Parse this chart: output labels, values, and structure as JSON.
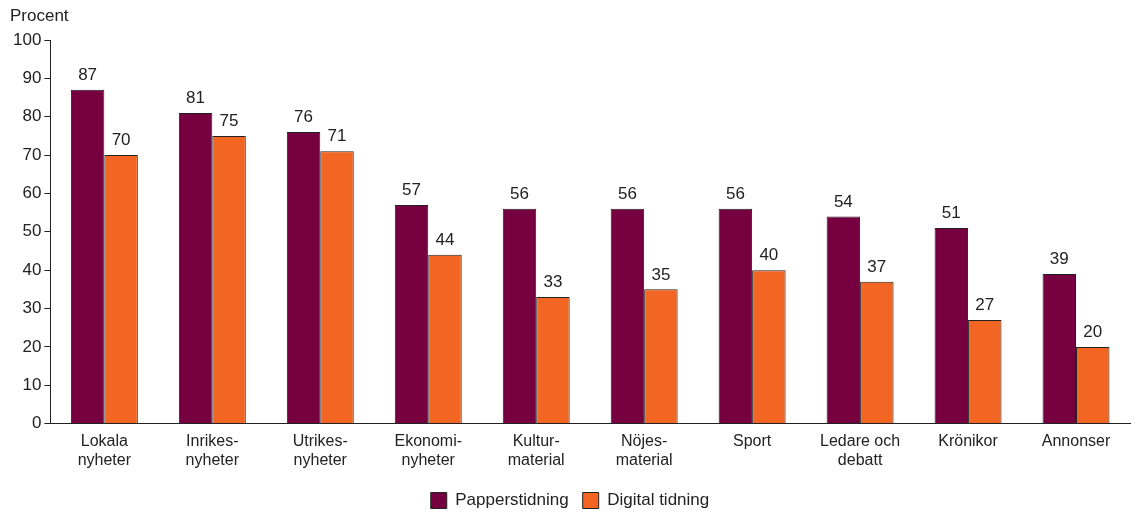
{
  "chart_data": {
    "type": "bar",
    "ylabel": "Procent",
    "categories": [
      "Lokala\nnyheter",
      "Inrikes-\nnyheter",
      "Utrikes-\nnyheter",
      "Ekonomi-\nnyheter",
      "Kultur-\nmaterial",
      "Nöjes-\nmaterial",
      "Sport",
      "Ledare och\ndebatt",
      "Krönikor",
      "Annonser"
    ],
    "series": [
      {
        "name": "Papperstidning",
        "color": "#76003f",
        "values": [
          87,
          81,
          76,
          57,
          56,
          56,
          56,
          54,
          51,
          39
        ]
      },
      {
        "name": "Digital tidning",
        "color": "#f26522",
        "values": [
          70,
          75,
          71,
          44,
          33,
          35,
          40,
          37,
          27,
          20
        ]
      }
    ],
    "ylim": [
      0,
      100
    ],
    "yticks": [
      0,
      10,
      20,
      30,
      40,
      50,
      60,
      70,
      80,
      90,
      100
    ],
    "grid": false,
    "legend": "bottom",
    "data_labels": true
  }
}
